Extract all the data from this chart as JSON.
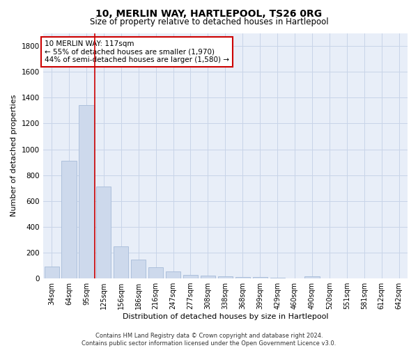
{
  "title": "10, MERLIN WAY, HARTLEPOOL, TS26 0RG",
  "subtitle": "Size of property relative to detached houses in Hartlepool",
  "xlabel": "Distribution of detached houses by size in Hartlepool",
  "ylabel": "Number of detached properties",
  "categories": [
    "34sqm",
    "64sqm",
    "95sqm",
    "125sqm",
    "156sqm",
    "186sqm",
    "216sqm",
    "247sqm",
    "277sqm",
    "308sqm",
    "338sqm",
    "368sqm",
    "399sqm",
    "429sqm",
    "460sqm",
    "490sqm",
    "520sqm",
    "551sqm",
    "581sqm",
    "612sqm",
    "642sqm"
  ],
  "values": [
    90,
    910,
    1340,
    710,
    250,
    145,
    85,
    55,
    25,
    22,
    15,
    12,
    10,
    8,
    0,
    18,
    0,
    0,
    0,
    0,
    0
  ],
  "bar_color": "#cdd9ec",
  "bar_edge_color": "#adc0dc",
  "grid_color": "#c8d4e8",
  "background_color": "#e8eef8",
  "property_line_x": 2.5,
  "property_line_color": "#cc0000",
  "annotation_text": "10 MERLIN WAY: 117sqm\n← 55% of detached houses are smaller (1,970)\n44% of semi-detached houses are larger (1,580) →",
  "annotation_box_color": "white",
  "annotation_box_edge": "#cc0000",
  "ylim": [
    0,
    1900
  ],
  "yticks": [
    0,
    200,
    400,
    600,
    800,
    1000,
    1200,
    1400,
    1600,
    1800
  ],
  "footer1": "Contains HM Land Registry data © Crown copyright and database right 2024.",
  "footer2": "Contains public sector information licensed under the Open Government Licence v3.0."
}
